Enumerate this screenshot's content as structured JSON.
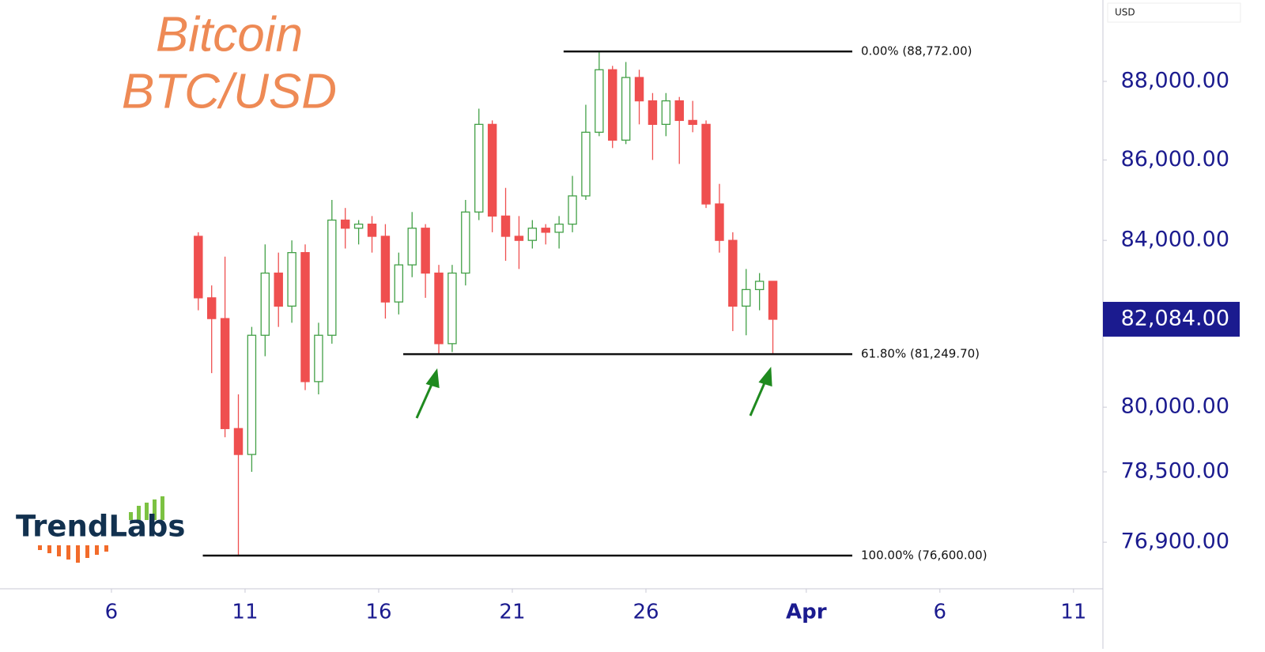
{
  "chart_data": {
    "type": "candlestick",
    "title": "Bitcoin",
    "subtitle": "BTC/USD",
    "currency": "USD",
    "logo": "TrendLabs",
    "x": [
      9.25,
      9.75,
      10.25,
      10.75,
      11.25,
      11.75,
      12.25,
      12.75,
      13.25,
      13.75,
      14.25,
      14.75,
      15.25,
      15.75,
      16.25,
      16.75,
      17.25,
      17.75,
      18.25,
      18.75,
      19.25,
      19.75,
      20.25,
      20.75,
      21.25,
      21.75,
      22.25,
      22.75,
      23.25,
      23.75,
      24.25,
      24.75,
      25.25,
      25.75,
      26.25,
      26.75,
      27.25,
      27.75,
      28.25,
      28.75,
      29.25,
      29.75,
      30.25,
      30.75
    ],
    "open": [
      84100,
      82600,
      82100,
      79500,
      78900,
      81700,
      83200,
      82400,
      83700,
      80600,
      81700,
      84500,
      84300,
      84400,
      84100,
      82500,
      83400,
      84300,
      83200,
      81500,
      83200,
      84700,
      86900,
      84600,
      84100,
      84000,
      84300,
      84200,
      84400,
      85100,
      86700,
      88300,
      86500,
      88100,
      87500,
      86900,
      87500,
      87000,
      86900,
      84900,
      84000,
      82400,
      82800,
      83000
    ],
    "high": [
      84200,
      82900,
      83600,
      80300,
      81900,
      83900,
      83700,
      84000,
      83900,
      82000,
      85000,
      84800,
      84500,
      84600,
      84400,
      83700,
      84700,
      84400,
      83400,
      83400,
      85000,
      87300,
      87000,
      85300,
      84600,
      84500,
      84400,
      84600,
      85600,
      87400,
      88772,
      88400,
      88500,
      88300,
      87700,
      87700,
      87600,
      87500,
      87000,
      85400,
      84200,
      83300,
      83200,
      83000
    ],
    "low": [
      82300,
      80800,
      79300,
      76600,
      78500,
      81200,
      81900,
      82000,
      80400,
      80300,
      81500,
      83800,
      83900,
      83700,
      82100,
      82200,
      83100,
      82600,
      81250,
      81300,
      82900,
      84500,
      84200,
      83500,
      83300,
      83800,
      83900,
      83800,
      84200,
      85000,
      86600,
      86300,
      86400,
      86900,
      86000,
      86600,
      85900,
      86700,
      84800,
      83700,
      81800,
      81700,
      82300,
      81250
    ],
    "close": [
      82600,
      82100,
      79500,
      78900,
      81700,
      83200,
      82400,
      83700,
      80600,
      81700,
      84500,
      84300,
      84400,
      84100,
      82500,
      83400,
      84300,
      83200,
      81500,
      83200,
      84700,
      86900,
      84600,
      84100,
      84000,
      84300,
      84200,
      84400,
      85100,
      86700,
      88300,
      86500,
      88100,
      87500,
      86900,
      87500,
      87000,
      86900,
      84900,
      84000,
      82400,
      82800,
      83000,
      82084
    ],
    "up_color": "#43a047",
    "down_color": "#ef4f4f",
    "xlim": [
      1.83,
      43.1
    ],
    "xticks": [
      6,
      11,
      16,
      21,
      26,
      {
        "value": 32,
        "label": "Apr"
      },
      {
        "value": 37,
        "label": "6"
      },
      {
        "value": 42,
        "label": "11"
      }
    ],
    "ylim": [
      75860,
      90120
    ],
    "log_scale": true,
    "yticks": [
      {
        "value": 88000,
        "label": "88,000.00"
      },
      {
        "value": 86000,
        "label": "86,000.00"
      },
      {
        "value": 84000,
        "label": "84,000.00"
      },
      {
        "value": 80000,
        "label": "80,000.00"
      },
      {
        "value": 78500,
        "label": "78,500.00"
      },
      {
        "value": 76900,
        "label": "76,900.00"
      }
    ],
    "last_price": {
      "value": 82084,
      "label": "82,084.00"
    },
    "levels": [
      {
        "value": 88772,
        "label": "0.00% (88,772.00)"
      },
      {
        "value": 81249.7,
        "label": "61.80% (81,249.70)"
      },
      {
        "value": 76600,
        "label": "100.00% (76,600.00)"
      }
    ]
  }
}
